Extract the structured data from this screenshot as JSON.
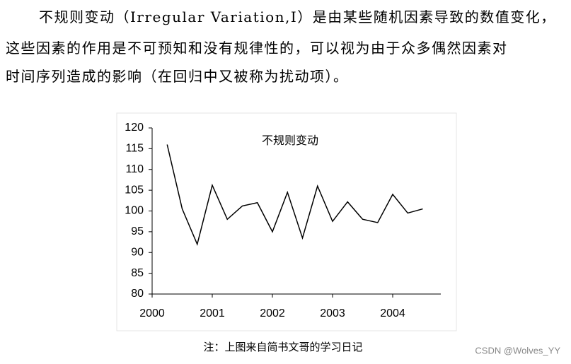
{
  "paragraph": {
    "lines": [
      "不规则变动（Irregular Variation,I）是由某些随机因素导致的数值变化，",
      "这些因素的作用是不可预知和没有规律性的，可以视为由于众多偶然因素对",
      "时间序列造成的影响（在回归中又被称为扰动项）。"
    ]
  },
  "chart_data": {
    "type": "line",
    "title": "不规则变动",
    "x": [
      2000.25,
      2000.5,
      2000.75,
      2001,
      2001.25,
      2001.5,
      2001.75,
      2002,
      2002.25,
      2002.5,
      2002.75,
      2003,
      2003.25,
      2003.5,
      2003.75,
      2004,
      2004.25,
      2004.5
    ],
    "values": [
      116,
      100.5,
      92,
      106.2,
      98,
      101.2,
      102,
      95,
      104.5,
      93.5,
      106,
      97.5,
      102.2,
      98,
      97.2,
      104,
      99.5,
      100.5
    ],
    "color": "#000000",
    "xlim": [
      2000,
      2004.8
    ],
    "xticks": [
      2000,
      2001,
      2002,
      2003,
      2004
    ],
    "ylim": [
      80,
      120
    ],
    "yticks": [
      80,
      85,
      90,
      95,
      100,
      105,
      110,
      115,
      120
    ]
  },
  "caption": "注：上图来自简书文哥的学习日记",
  "watermark": "CSDN @Wolves_YY"
}
